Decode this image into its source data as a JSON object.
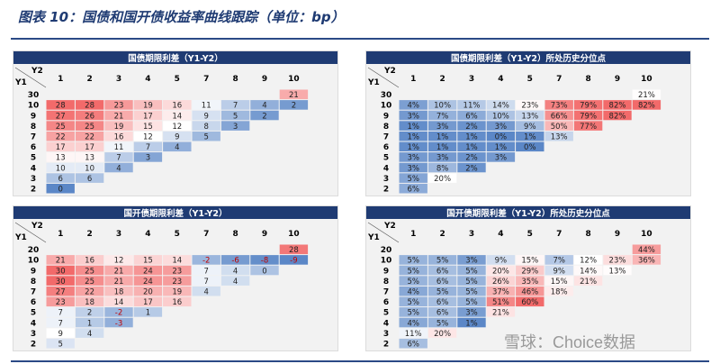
{
  "figure_title": "图表 10：国债和国开债收益率曲线跟踪（单位：bp）",
  "watermark": "雪球：Choice数据",
  "chart_data": [
    {
      "type": "heatmap",
      "title": "国债期限利差（Y1-Y2）",
      "col_axis_label": "Y2",
      "row_axis_label": "Y1",
      "columns": [
        "1",
        "2",
        "3",
        "4",
        "5",
        "7",
        "8",
        "9",
        "10"
      ],
      "rows": [
        "30",
        "10",
        "9",
        "8",
        "7",
        "6",
        "5",
        "4",
        "3",
        "2"
      ],
      "values": [
        [
          null,
          null,
          null,
          null,
          null,
          null,
          null,
          null,
          "21"
        ],
        [
          "28",
          "28",
          "23",
          "19",
          "16",
          "11",
          "7",
          "4",
          "2"
        ],
        [
          "27",
          "26",
          "21",
          "17",
          "14",
          "9",
          "5",
          "2",
          null
        ],
        [
          "25",
          "25",
          "19",
          "15",
          "12",
          "8",
          "3",
          null,
          null
        ],
        [
          "22",
          "22",
          "16",
          "12",
          "9",
          "5",
          null,
          null,
          null
        ],
        [
          "17",
          "17",
          "11",
          "7",
          "4",
          null,
          null,
          null,
          null
        ],
        [
          "13",
          "13",
          "7",
          "3",
          null,
          null,
          null,
          null,
          null
        ],
        [
          "10",
          "10",
          "4",
          null,
          null,
          null,
          null,
          null,
          null
        ],
        [
          "6",
          "6",
          null,
          null,
          null,
          null,
          null,
          null,
          null
        ],
        [
          "0",
          null,
          null,
          null,
          null,
          null,
          null,
          null,
          null
        ]
      ],
      "color_scale": {
        "low": "#5b87c7",
        "mid": "#ffffff",
        "high": "#f26a6a",
        "min": 0,
        "mid_value": 12,
        "max": 28
      }
    },
    {
      "type": "heatmap",
      "title": "国债期限利差（Y1-Y2）所处历史分位点",
      "col_axis_label": "Y2",
      "row_axis_label": "Y1",
      "columns": [
        "1",
        "2",
        "3",
        "4",
        "5",
        "7",
        "8",
        "9",
        "10"
      ],
      "rows": [
        "30",
        "10",
        "9",
        "8",
        "7",
        "6",
        "5",
        "4",
        "3",
        "2"
      ],
      "values": [
        [
          null,
          null,
          null,
          null,
          null,
          null,
          null,
          null,
          "21%"
        ],
        [
          "4%",
          "10%",
          "11%",
          "14%",
          "23%",
          "73%",
          "79%",
          "82%",
          "82%"
        ],
        [
          "3%",
          "7%",
          "6%",
          "10%",
          "13%",
          "66%",
          "79%",
          "82%",
          null
        ],
        [
          "1%",
          "3%",
          "2%",
          "3%",
          "9%",
          "50%",
          "77%",
          null,
          null
        ],
        [
          "1%",
          "1%",
          "1%",
          "0%",
          "1%",
          "13%",
          null,
          null,
          null
        ],
        [
          "1%",
          "1%",
          "1%",
          "1%",
          "0%",
          null,
          null,
          null,
          null
        ],
        [
          "3%",
          "3%",
          "2%",
          "3%",
          null,
          null,
          null,
          null,
          null
        ],
        [
          "3%",
          "8%",
          "2%",
          null,
          null,
          null,
          null,
          null,
          null
        ],
        [
          "5%",
          "20%",
          null,
          null,
          null,
          null,
          null,
          null,
          null
        ],
        [
          "6%",
          null,
          null,
          null,
          null,
          null,
          null,
          null,
          null
        ]
      ],
      "color_scale": {
        "low": "#5b87c7",
        "mid": "#ffffff",
        "high": "#f26a6a",
        "min": 0,
        "mid_value": 20,
        "max": 82
      }
    },
    {
      "type": "heatmap",
      "title": "国开债期限利差（Y1-Y2）",
      "col_axis_label": "Y2",
      "row_axis_label": "Y1",
      "columns": [
        "1",
        "2",
        "3",
        "4",
        "5",
        "7",
        "8",
        "9",
        "10"
      ],
      "rows": [
        "20",
        "10",
        "9",
        "8",
        "7",
        "6",
        "5",
        "4",
        "3",
        "2"
      ],
      "values": [
        [
          null,
          null,
          null,
          null,
          null,
          null,
          null,
          null,
          "28"
        ],
        [
          "21",
          "16",
          "12",
          "15",
          "14",
          "-2",
          "-6",
          "-8",
          "-9"
        ],
        [
          "30",
          "25",
          "21",
          "24",
          "23",
          "7",
          "4",
          "0",
          null
        ],
        [
          "30",
          "25",
          "21",
          "24",
          "23",
          "7",
          "4",
          null,
          null
        ],
        [
          "27",
          "22",
          "18",
          "20",
          "19",
          "4",
          null,
          null,
          null
        ],
        [
          "23",
          "18",
          "14",
          "17",
          "16",
          null,
          null,
          null,
          null
        ],
        [
          "7",
          "2",
          "-2",
          "1",
          null,
          null,
          null,
          null,
          null
        ],
        [
          "7",
          "1",
          "-3",
          null,
          null,
          null,
          null,
          null,
          null
        ],
        [
          "9",
          "4",
          null,
          null,
          null,
          null,
          null,
          null,
          null
        ],
        [
          "5",
          null,
          null,
          null,
          null,
          null,
          null,
          null,
          null
        ]
      ],
      "color_scale": {
        "low": "#5b87c7",
        "mid": "#ffffff",
        "high": "#f26a6a",
        "min": -9,
        "mid_value": 9,
        "max": 30
      }
    },
    {
      "type": "heatmap",
      "title": "国开债期限利差（Y1-Y2）所处历史分位点",
      "col_axis_label": "Y2",
      "row_axis_label": "Y1",
      "columns": [
        "1",
        "2",
        "3",
        "4",
        "5",
        "7",
        "8",
        "9",
        "10"
      ],
      "rows": [
        "20",
        "10",
        "9",
        "8",
        "7",
        "6",
        "5",
        "4",
        "3",
        "2"
      ],
      "values": [
        [
          null,
          null,
          null,
          null,
          null,
          null,
          null,
          null,
          "44%"
        ],
        [
          "5%",
          "5%",
          "3%",
          "9%",
          "15%",
          "7%",
          "12%",
          "23%",
          "36%"
        ],
        [
          "5%",
          "6%",
          "5%",
          "20%",
          "29%",
          "9%",
          "14%",
          "13%",
          null
        ],
        [
          "5%",
          "6%",
          "5%",
          "26%",
          "35%",
          "15%",
          "21%",
          null,
          null
        ],
        [
          "4%",
          "5%",
          "5%",
          "37%",
          "46%",
          "18%",
          null,
          null,
          null
        ],
        [
          "5%",
          "6%",
          "5%",
          "51%",
          "60%",
          null,
          null,
          null,
          null
        ],
        [
          "5%",
          "6%",
          "3%",
          "21%",
          null,
          null,
          null,
          null,
          null
        ],
        [
          "4%",
          "5%",
          "1%",
          null,
          null,
          null,
          null,
          null,
          null
        ],
        [
          "11%",
          "20%",
          null,
          null,
          null,
          null,
          null,
          null,
          null
        ],
        [
          "6%",
          null,
          null,
          null,
          null,
          null,
          null,
          null,
          null
        ]
      ],
      "color_scale": {
        "low": "#5b87c7",
        "mid": "#ffffff",
        "high": "#f26a6a",
        "min": 1,
        "mid_value": 12,
        "max": 60
      }
    }
  ]
}
